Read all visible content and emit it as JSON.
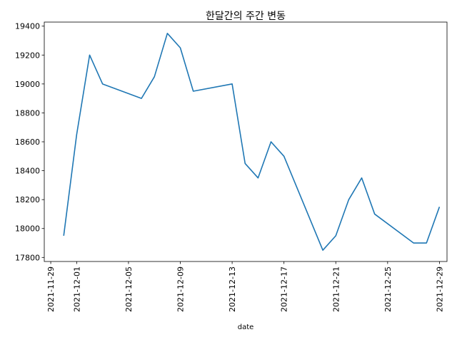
{
  "chart_data": {
    "type": "line",
    "title": "한달간의 주간 변동",
    "xlabel": "date",
    "ylabel": "",
    "x_ticks": [
      "2021-11-29",
      "2021-12-01",
      "2021-12-05",
      "2021-12-09",
      "2021-12-13",
      "2021-12-17",
      "2021-12-21",
      "2021-12-25",
      "2021-12-29"
    ],
    "y_ticks": [
      17800,
      18000,
      18200,
      18400,
      18600,
      18800,
      19000,
      19200,
      19400
    ],
    "xlim": [
      "2021-11-28T12:00",
      "2021-12-29T14:00"
    ],
    "ylim": [
      17772,
      19428
    ],
    "grid": false,
    "line_color": "#1f77b4",
    "series": [
      {
        "x": [
          "2021-11-30",
          "2021-12-01",
          "2021-12-02",
          "2021-12-03",
          "2021-12-06",
          "2021-12-07",
          "2021-12-08",
          "2021-12-09",
          "2021-12-10",
          "2021-12-13",
          "2021-12-14",
          "2021-12-15",
          "2021-12-16",
          "2021-12-17",
          "2021-12-20",
          "2021-12-21",
          "2021-12-22",
          "2021-12-23",
          "2021-12-24",
          "2021-12-27",
          "2021-12-28",
          "2021-12-29"
        ],
        "values": [
          17950,
          18650,
          19200,
          19000,
          18900,
          19050,
          19350,
          19250,
          18950,
          19000,
          18450,
          18350,
          18600,
          18500,
          17850,
          17950,
          18200,
          18350,
          18100,
          17900,
          17900,
          18150
        ]
      }
    ]
  }
}
